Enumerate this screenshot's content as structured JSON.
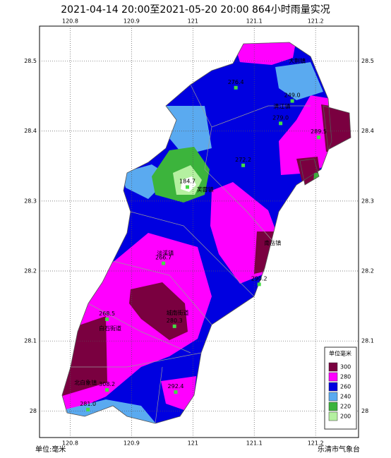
{
  "title": "2021-04-14 20:00至2021-05-20 20:00 864小时雨量实况",
  "map": {
    "xlim": [
      120.75,
      121.27
    ],
    "ylim": [
      27.962,
      28.55
    ],
    "xticks": [
      120.8,
      120.9,
      121,
      121.1,
      121.2
    ],
    "yticks": [
      28,
      28.1,
      28.2,
      28.3,
      28.4,
      28.5
    ],
    "grid": true,
    "legend": {
      "title": "单位毫米",
      "levels": [
        {
          "value": 300,
          "color": "#7a0040"
        },
        {
          "value": 280,
          "color": "#ff00ff"
        },
        {
          "value": 260,
          "color": "#0000e0"
        },
        {
          "value": 240,
          "color": "#5aaaf0"
        },
        {
          "value": 220,
          "color": "#3cb43c"
        },
        {
          "value": 200,
          "color": "#b4f0a0"
        }
      ]
    },
    "stations": [
      {
        "value": "249.0",
        "lon": 121.162,
        "lat": 28.443
      },
      {
        "value": "184.7",
        "lon": 120.991,
        "lat": 28.32
      },
      {
        "value": "289.5",
        "lon": 121.205,
        "lat": 28.391
      },
      {
        "value": "290.2",
        "lon": 121.108,
        "lat": 28.181
      },
      {
        "value": "268.5",
        "lon": 120.86,
        "lat": 28.131
      },
      {
        "value": "281.0",
        "lon": 120.829,
        "lat": 28.002
      },
      {
        "value": "266.7",
        "lon": 120.952,
        "lat": 28.211
      },
      {
        "value": "292.4",
        "lon": 120.972,
        "lat": 28.027
      },
      {
        "value": "272.2",
        "lon": 121.082,
        "lat": 28.351
      },
      {
        "value": "279.0",
        "lon": 121.143,
        "lat": 28.411
      },
      {
        "value": "276.4",
        "lon": 121.07,
        "lat": 28.462
      },
      {
        "value": "308.2",
        "lon": 120.86,
        "lat": 28.03
      },
      {
        "value": "280.3",
        "lon": 120.97,
        "lat": 28.121
      }
    ],
    "places": [
      {
        "name": "大荆镇",
        "lon": 121.17,
        "lat": 28.5
      },
      {
        "name": "清江镇",
        "lon": 121.145,
        "lat": 28.435
      },
      {
        "name": "芙蓉镇",
        "lon": 121.02,
        "lat": 28.316
      },
      {
        "name": "淡溪镇",
        "lon": 120.955,
        "lat": 28.225
      },
      {
        "name": "南岳镇",
        "lon": 121.13,
        "lat": 28.24
      },
      {
        "name": "白石街道",
        "lon": 120.865,
        "lat": 28.118
      },
      {
        "name": "城南街道",
        "lon": 120.975,
        "lat": 28.14
      },
      {
        "name": "北白象镇",
        "lon": 120.825,
        "lat": 28.04
      }
    ],
    "unit": "单位:毫米",
    "source": "乐清市气象台"
  }
}
